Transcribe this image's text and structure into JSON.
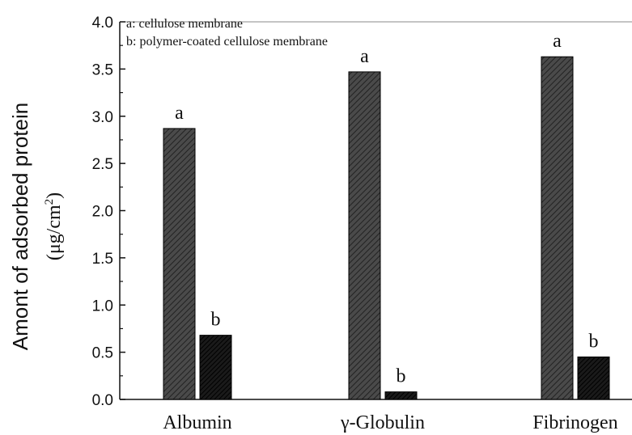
{
  "chart_data": {
    "type": "bar",
    "categories": [
      "Albumin",
      "γ-Globulin",
      "Fibrinogen"
    ],
    "series": [
      {
        "name": "a: cellulose membrane",
        "label": "a",
        "values": [
          2.87,
          3.47,
          3.63
        ],
        "color": "#3a3a3a"
      },
      {
        "name": "b: polymer-coated cellulose membrane",
        "label": "b",
        "values": [
          0.68,
          0.08,
          0.45
        ],
        "color": "#111111"
      }
    ],
    "ylabel_main": "Amont of adsorbed protein",
    "ylabel_unit": "(μg/cm",
    "ylabel_unit_sup": "2",
    "ylabel_unit_end": ")",
    "ylim": [
      0,
      4.0
    ],
    "yticks": [
      "0.0",
      "0.5",
      "1.0",
      "1.5",
      "2.0",
      "2.5",
      "3.0",
      "3.5",
      "4.0"
    ],
    "legend_position": "top-left",
    "grid": false
  }
}
